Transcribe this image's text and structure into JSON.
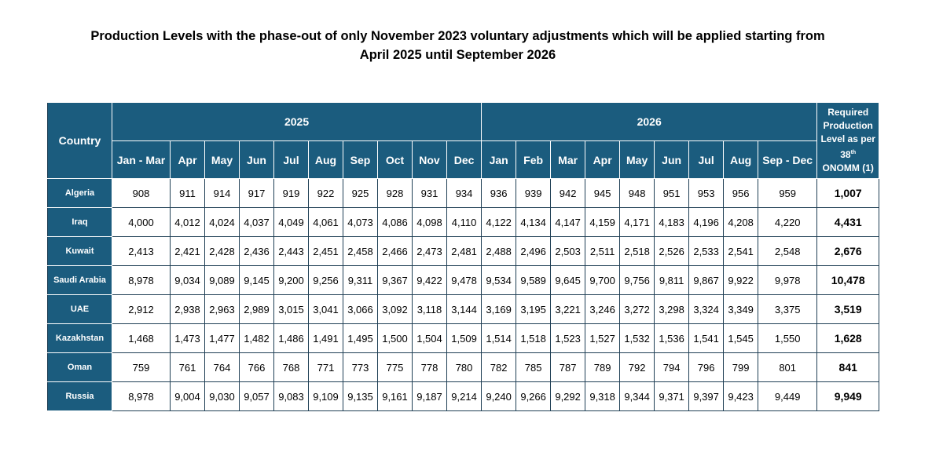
{
  "title_line1": "Production Levels with the phase-out of only November 2023 voluntary adjustments which will be applied starting from",
  "title_line2": "April 2025 until September 2026",
  "header": {
    "country": "Country",
    "year_2025": "2025",
    "year_2026": "2026",
    "required_line1": "Required",
    "required_line2": "Production",
    "required_line3": "Level as per",
    "required_num": "38",
    "required_sup": "th",
    "required_line5": "ONOMM (1)",
    "months": [
      "Jan - Mar",
      "Apr",
      "May",
      "Jun",
      "Jul",
      "Aug",
      "Sep",
      "Oct",
      "Nov",
      "Dec",
      "Jan",
      "Feb",
      "Mar",
      "Apr",
      "May",
      "Jun",
      "Jul",
      "Aug",
      "Sep - Dec"
    ]
  },
  "rows": [
    {
      "country": "Algeria",
      "values": [
        "908",
        "911",
        "914",
        "917",
        "919",
        "922",
        "925",
        "928",
        "931",
        "934",
        "936",
        "939",
        "942",
        "945",
        "948",
        "951",
        "953",
        "956",
        "959"
      ],
      "required": "1,007"
    },
    {
      "country": "Iraq",
      "values": [
        "4,000",
        "4,012",
        "4,024",
        "4,037",
        "4,049",
        "4,061",
        "4,073",
        "4,086",
        "4,098",
        "4,110",
        "4,122",
        "4,134",
        "4,147",
        "4,159",
        "4,171",
        "4,183",
        "4,196",
        "4,208",
        "4,220"
      ],
      "required": "4,431"
    },
    {
      "country": "Kuwait",
      "values": [
        "2,413",
        "2,421",
        "2,428",
        "2,436",
        "2,443",
        "2,451",
        "2,458",
        "2,466",
        "2,473",
        "2,481",
        "2,488",
        "2,496",
        "2,503",
        "2,511",
        "2,518",
        "2,526",
        "2,533",
        "2,541",
        "2,548"
      ],
      "required": "2,676"
    },
    {
      "country": "Saudi Arabia",
      "values": [
        "8,978",
        "9,034",
        "9,089",
        "9,145",
        "9,200",
        "9,256",
        "9,311",
        "9,367",
        "9,422",
        "9,478",
        "9,534",
        "9,589",
        "9,645",
        "9,700",
        "9,756",
        "9,811",
        "9,867",
        "9,922",
        "9,978"
      ],
      "required": "10,478"
    },
    {
      "country": "UAE",
      "values": [
        "2,912",
        "2,938",
        "2,963",
        "2,989",
        "3,015",
        "3,041",
        "3,066",
        "3,092",
        "3,118",
        "3,144",
        "3,169",
        "3,195",
        "3,221",
        "3,246",
        "3,272",
        "3,298",
        "3,324",
        "3,349",
        "3,375"
      ],
      "required": "3,519"
    },
    {
      "country": "Kazakhstan",
      "values": [
        "1,468",
        "1,473",
        "1,477",
        "1,482",
        "1,486",
        "1,491",
        "1,495",
        "1,500",
        "1,504",
        "1,509",
        "1,514",
        "1,518",
        "1,523",
        "1,527",
        "1,532",
        "1,536",
        "1,541",
        "1,545",
        "1,550"
      ],
      "required": "1,628"
    },
    {
      "country": "Oman",
      "values": [
        "759",
        "761",
        "764",
        "766",
        "768",
        "771",
        "773",
        "775",
        "778",
        "780",
        "782",
        "785",
        "787",
        "789",
        "792",
        "794",
        "796",
        "799",
        "801"
      ],
      "required": "841"
    },
    {
      "country": "Russia",
      "values": [
        "8,978",
        "9,004",
        "9,030",
        "9,057",
        "9,083",
        "9,109",
        "9,135",
        "9,161",
        "9,187",
        "9,214",
        "9,240",
        "9,266",
        "9,292",
        "9,318",
        "9,344",
        "9,371",
        "9,397",
        "9,423",
        "9,449"
      ],
      "required": "9,949"
    }
  ]
}
